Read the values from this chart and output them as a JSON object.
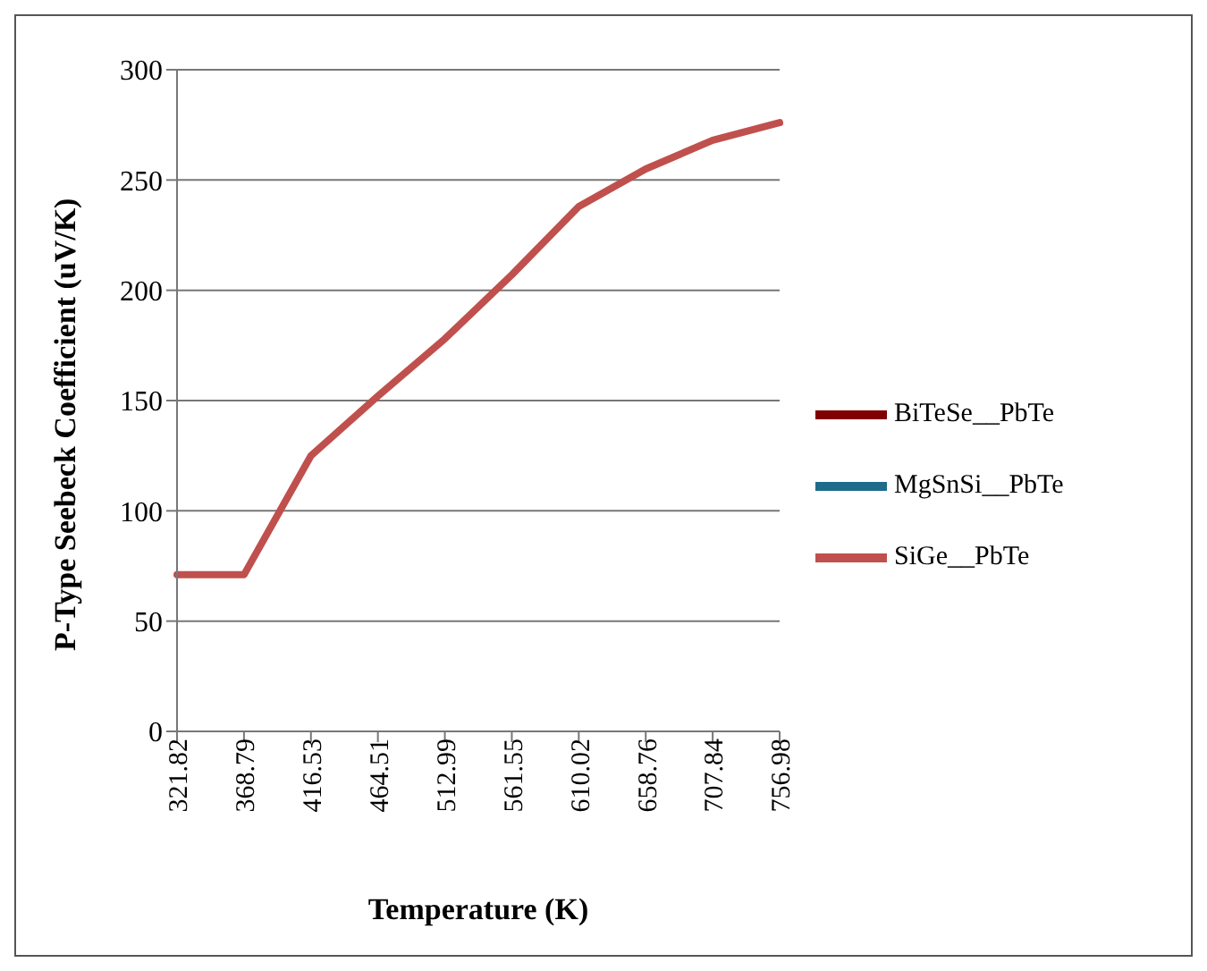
{
  "chart_data": {
    "type": "line",
    "xlabel": "Temperature (K)",
    "ylabel": "P-Type Seebeck Coefficient (uV/K)",
    "categories": [
      "321.82",
      "368.79",
      "416.53",
      "464.51",
      "512.99",
      "561.55",
      "610.02",
      "658.76",
      "707.84",
      "756.98"
    ],
    "series": [
      {
        "name": "BiTeSe__PbTe",
        "color": "#800000",
        "values": [
          null,
          null,
          null,
          null,
          null,
          null,
          null,
          null,
          null,
          null
        ]
      },
      {
        "name": "MgSnSi__PbTe",
        "color": "#1f6b8c",
        "values": [
          null,
          null,
          null,
          null,
          null,
          null,
          null,
          null,
          null,
          null
        ]
      },
      {
        "name": "SiGe__PbTe",
        "color": "#c0504d",
        "values": [
          71,
          71,
          125,
          152,
          178,
          207,
          238,
          255,
          268,
          276
        ]
      }
    ],
    "ylim": [
      0,
      300
    ],
    "yticks": [
      0,
      50,
      100,
      150,
      200,
      250,
      300
    ],
    "grid": "y",
    "legend": "right",
    "marker": "none",
    "line_style": "solid"
  }
}
